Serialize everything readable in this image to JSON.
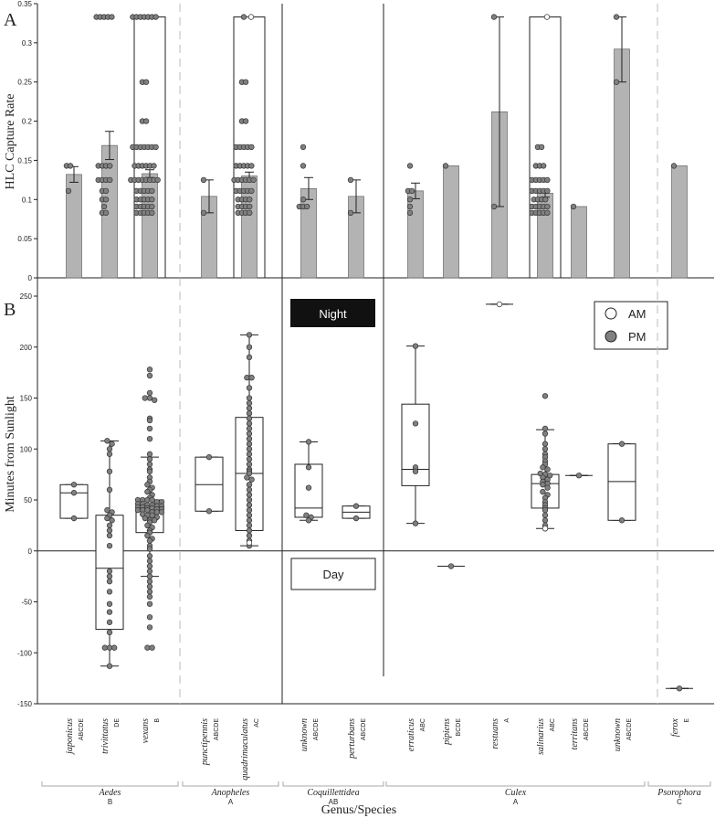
{
  "panel_labels": {
    "a": "A",
    "b": "B"
  },
  "legend": {
    "am": "AM",
    "pm": "PM"
  },
  "night_label": "Night",
  "day_label": "Day",
  "x_axis_title": "Genus/Species",
  "colors": {
    "bar": "#b3b3b3",
    "pm_point": "#808080",
    "am_point": "#ffffff",
    "night_box": "#111111",
    "axis": "#222222",
    "dashed_divider": "#bbbbbb"
  },
  "chart_data": [
    {
      "type": "bar",
      "ylabel": "HLC Capture Rate",
      "ylim": [
        0,
        0.35
      ],
      "yticks": [
        "0",
        "0.05",
        "0.1",
        "0.15",
        "0.2",
        "0.25",
        "0.3",
        "0.35"
      ],
      "grid": false,
      "categories": [
        "japonicus",
        "trivittatus",
        "vexans",
        "punctipennis",
        "quadrimaculatus",
        "unknown",
        "perturbans",
        "erraticus",
        "pipiens",
        "restuans",
        "salinarius",
        "territans",
        "unknown",
        "ferox"
      ],
      "values": [
        0.132,
        0.169,
        0.133,
        0.104,
        0.13,
        0.114,
        0.104,
        0.111,
        0.143,
        0.212,
        0.108,
        0.091,
        0.292,
        0.143
      ],
      "error": [
        [
          0.122,
          0.142
        ],
        [
          0.151,
          0.187
        ],
        [
          0.128,
          0.138
        ],
        [
          0.083,
          0.125
        ],
        [
          0.125,
          0.135
        ],
        [
          0.1,
          0.128
        ],
        [
          0.083,
          0.125
        ],
        [
          0.101,
          0.121
        ],
        null,
        [
          0.091,
          0.333
        ],
        [
          0.103,
          0.113
        ],
        null,
        [
          0.25,
          0.333
        ],
        null
      ],
      "am_range_box": [
        null,
        null,
        [
          0,
          0.333
        ],
        null,
        [
          0,
          0.333
        ],
        null,
        null,
        null,
        null,
        null,
        [
          0,
          0.333
        ],
        null,
        null,
        null
      ],
      "points": [
        {
          "pm": [
            0.111,
            0.143,
            0.143
          ]
        },
        {
          "pm": [
            0.333,
            0.333,
            0.333,
            0.333,
            0.333,
            0.143,
            0.143,
            0.143,
            0.143,
            0.125,
            0.125,
            0.125,
            0.125,
            0.111,
            0.111,
            0.1,
            0.1,
            0.091,
            0.083,
            0.083
          ]
        },
        {
          "pm": [
            0.333,
            0.333,
            0.333,
            0.333,
            0.333,
            0.333,
            0.333,
            0.25,
            0.25,
            0.2,
            0.2,
            0.167,
            0.167,
            0.167,
            0.167,
            0.167,
            0.167,
            0.167,
            0.143,
            0.143,
            0.143,
            0.143,
            0.143,
            0.143,
            0.125,
            0.125,
            0.125,
            0.125,
            0.125,
            0.125,
            0.125,
            0.125,
            0.111,
            0.111,
            0.111,
            0.111,
            0.111,
            0.1,
            0.1,
            0.1,
            0.1,
            0.1,
            0.091,
            0.091,
            0.091,
            0.091,
            0.091,
            0.083,
            0.083,
            0.083,
            0.083,
            0.083
          ]
        },
        {
          "pm": [
            0.125,
            0.083
          ]
        },
        {
          "pm": [
            0.333,
            0.25,
            0.25,
            0.2,
            0.2,
            0.167,
            0.167,
            0.167,
            0.167,
            0.167,
            0.143,
            0.143,
            0.143,
            0.143,
            0.143,
            0.125,
            0.125,
            0.125,
            0.125,
            0.125,
            0.125,
            0.111,
            0.111,
            0.111,
            0.111,
            0.111,
            0.1,
            0.1,
            0.1,
            0.1,
            0.091,
            0.091,
            0.091,
            0.091,
            0.083,
            0.083,
            0.083,
            0.083
          ],
          "am": [
            0.333
          ]
        },
        {
          "pm": [
            0.167,
            0.143,
            0.1,
            0.091,
            0.091,
            0.091
          ]
        },
        {
          "pm": [
            0.125,
            0.083
          ]
        },
        {
          "pm": [
            0.143,
            0.111,
            0.111,
            0.1,
            0.091,
            0.083
          ]
        },
        {
          "pm": [
            0.143
          ]
        },
        {
          "pm": [
            0.333,
            0.091
          ]
        },
        {
          "pm": [
            0.167,
            0.167,
            0.143,
            0.143,
            0.143,
            0.125,
            0.125,
            0.125,
            0.125,
            0.125,
            0.111,
            0.111,
            0.111,
            0.111,
            0.111,
            0.1,
            0.1,
            0.1,
            0.1,
            0.091,
            0.091,
            0.091,
            0.091,
            0.091,
            0.083,
            0.083,
            0.083,
            0.083,
            0.083
          ],
          "am": [
            0.333
          ]
        },
        {
          "pm": [
            0.091
          ]
        },
        {
          "pm": [
            0.25,
            0.333
          ]
        },
        {
          "pm": [
            0.143
          ]
        }
      ]
    },
    {
      "type": "box",
      "ylabel": "Minutes from Sunlight",
      "ylim": [
        -150,
        250
      ],
      "yticks": [
        "-150",
        "-100",
        "-50",
        "0",
        "50",
        "100",
        "150",
        "200",
        "250"
      ],
      "grid": false,
      "legend_position": "top-right",
      "series": [
        {
          "name": "AM",
          "fill": "#ffffff"
        },
        {
          "name": "PM",
          "fill": "#808080"
        }
      ],
      "groups": [
        {
          "genus": "Aedes",
          "letter": "B",
          "species": [
            {
              "name": "japonicus",
              "letters": "ABCDE"
            },
            {
              "name": "trivittatus",
              "letters": "DE"
            },
            {
              "name": "vexans",
              "letters": "B"
            }
          ]
        },
        {
          "genus": "Anopheles",
          "letter": "A",
          "species": [
            {
              "name": "punctipennis",
              "letters": "ABCDE"
            },
            {
              "name": "quadrimaculatus",
              "letters": "AC"
            }
          ]
        },
        {
          "genus": "Coquillettidea",
          "letter": "AB",
          "species": [
            {
              "name": "unknown",
              "letters": "ABCDE"
            },
            {
              "name": "perturbans",
              "letters": "ABCDE"
            }
          ]
        },
        {
          "genus": "Culex",
          "letter": "A",
          "species": [
            {
              "name": "erraticus",
              "letters": "ABC"
            },
            {
              "name": "pipiens",
              "letters": "BCDE"
            },
            {
              "name": "restuans",
              "letters": "A"
            },
            {
              "name": "salinarius",
              "letters": "ABC"
            },
            {
              "name": "territans",
              "letters": "ABCDE"
            },
            {
              "name": "unknown",
              "letters": "ABCDE"
            }
          ]
        },
        {
          "genus": "Psorophora",
          "letter": "C",
          "species": [
            {
              "name": "ferox",
              "letters": "E"
            }
          ]
        }
      ],
      "boxes": [
        {
          "whisker": [
            32,
            65
          ],
          "q1": 32,
          "median": 57,
          "q3": 65,
          "pm": [
            65,
            57,
            32
          ]
        },
        {
          "whisker": [
            -113,
            108
          ],
          "q1": -77,
          "median": -17,
          "q3": 35,
          "pm": [
            108,
            105,
            100,
            95,
            78,
            60,
            40,
            38,
            35,
            32,
            30,
            25,
            20,
            15,
            5,
            -20,
            -25,
            -30,
            -40,
            -52,
            -60,
            -70,
            -80,
            -95,
            -95,
            -95,
            -113
          ]
        },
        {
          "whisker": [
            -25,
            92
          ],
          "q1": 18,
          "median": 42,
          "q3": 50,
          "pm": [
            178,
            172,
            155,
            150,
            150,
            148,
            130,
            128,
            120,
            110,
            95,
            90,
            85,
            80,
            78,
            72,
            68,
            65,
            62,
            60,
            58,
            55,
            52,
            50,
            50,
            50,
            50,
            48,
            48,
            46,
            46,
            45,
            45,
            44,
            44,
            43,
            43,
            42,
            42,
            41,
            41,
            40,
            40,
            40,
            38,
            38,
            38,
            36,
            35,
            35,
            33,
            32,
            30,
            30,
            28,
            25,
            23,
            20,
            18,
            15,
            12,
            10,
            5,
            2,
            -5,
            -10,
            -15,
            -20,
            -25,
            -30,
            -35,
            -40,
            -45,
            -52,
            -65,
            -75,
            -95,
            -95
          ]
        },
        {
          "whisker": [
            39,
            92
          ],
          "q1": 39,
          "median": 65,
          "q3": 92,
          "pm": [
            92,
            39
          ]
        },
        {
          "whisker": [
            5,
            212
          ],
          "q1": 20,
          "median": 76,
          "q3": 131,
          "pm": [
            212,
            200,
            190,
            170,
            170,
            160,
            150,
            145,
            140,
            135,
            130,
            125,
            120,
            115,
            110,
            105,
            100,
            95,
            90,
            85,
            80,
            78,
            76,
            72,
            70,
            65,
            60,
            55,
            50,
            45,
            40,
            35,
            30,
            25,
            20,
            15,
            10,
            5
          ],
          "am": [
            8
          ]
        },
        {
          "whisker": [
            30,
            107
          ],
          "q1": 33,
          "median": 42,
          "q3": 85,
          "pm": [
            107,
            82,
            62,
            35,
            33,
            30
          ]
        },
        {
          "whisker": [
            32,
            44
          ],
          "q1": 32,
          "median": 38,
          "q3": 44,
          "pm": [
            44,
            32
          ]
        },
        {
          "whisker": [
            27,
            201
          ],
          "q1": 64,
          "median": 80,
          "q3": 144,
          "pm": [
            201,
            125,
            82,
            78,
            27
          ]
        },
        {
          "whisker": [
            -15,
            -15
          ],
          "q1": -15,
          "median": -15,
          "q3": -15,
          "pm": [
            -15
          ]
        },
        {
          "whisker": [
            242,
            242
          ],
          "q1": 242,
          "median": 242,
          "q3": 242,
          "am": [
            242
          ]
        },
        {
          "whisker": [
            22,
            119
          ],
          "q1": 42,
          "median": 66,
          "q3": 75,
          "pm": [
            152,
            120,
            115,
            105,
            100,
            95,
            92,
            88,
            85,
            82,
            80,
            76,
            75,
            74,
            72,
            70,
            68,
            66,
            65,
            62,
            58,
            55,
            52,
            48,
            45,
            42,
            40,
            35,
            30,
            25,
            22
          ],
          "am": [
            22
          ]
        },
        {
          "whisker": [
            74,
            74
          ],
          "q1": 74,
          "median": 74,
          "q3": 74,
          "pm": [
            74
          ]
        },
        {
          "whisker": [
            30,
            105
          ],
          "q1": 30,
          "median": 68,
          "q3": 105,
          "pm": [
            105,
            30
          ]
        },
        {
          "whisker": [
            -135,
            -135
          ],
          "q1": -135,
          "median": -135,
          "q3": -135,
          "pm": [
            -135
          ]
        }
      ]
    }
  ]
}
